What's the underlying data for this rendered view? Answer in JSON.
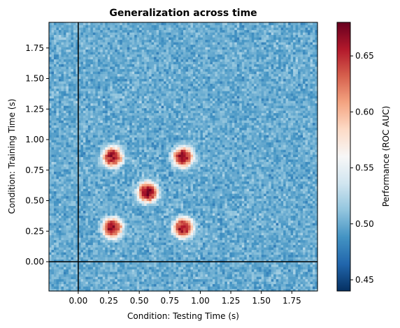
{
  "chart_data": {
    "type": "heatmap",
    "title": "Generalization across time",
    "xlabel": "Condition: Testing Time (s)",
    "ylabel": "Condition: Training Time (s)",
    "colorbar_label": "Performance (ROC AUC)",
    "colormap": "RdBu_r",
    "colormap_stops": [
      "#053061",
      "#2166ac",
      "#4393c3",
      "#92c5de",
      "#d1e5f0",
      "#f7f7f7",
      "#fddbc7",
      "#f4a582",
      "#d6604d",
      "#b2182b",
      "#67001f"
    ],
    "xlim": [
      -0.24,
      1.96
    ],
    "ylim": [
      -0.24,
      1.96
    ],
    "vmin": 0.44,
    "vmax": 0.68,
    "baseline": 0.5,
    "grid_resolution": 0.02,
    "xticks": [
      0.0,
      0.25,
      0.5,
      0.75,
      1.0,
      1.25,
      1.5,
      1.75
    ],
    "xtick_labels": [
      "0.00",
      "0.25",
      "0.50",
      "0.75",
      "1.00",
      "1.25",
      "1.50",
      "1.75"
    ],
    "yticks": [
      0.0,
      0.25,
      0.5,
      0.75,
      1.0,
      1.25,
      1.5,
      1.75
    ],
    "ytick_labels": [
      "0.00",
      "0.25",
      "0.50",
      "0.75",
      "1.00",
      "1.25",
      "1.50",
      "1.75"
    ],
    "colorbar_ticks": [
      0.45,
      0.5,
      0.55,
      0.6,
      0.65
    ],
    "colorbar_tick_labels": [
      "0.45",
      "0.50",
      "0.55",
      "0.60",
      "0.65"
    ],
    "reference_lines": [
      {
        "orientation": "vertical",
        "x": 0.0,
        "color": "#000000"
      },
      {
        "orientation": "horizontal",
        "y": 0.0,
        "color": "#000000"
      }
    ],
    "peaks": [
      {
        "test_time": 0.28,
        "train_time": 0.86,
        "auc": 0.66
      },
      {
        "test_time": 0.86,
        "train_time": 0.86,
        "auc": 0.66
      },
      {
        "test_time": 0.57,
        "train_time": 0.57,
        "auc": 0.67
      },
      {
        "test_time": 0.28,
        "train_time": 0.28,
        "auc": 0.66
      },
      {
        "test_time": 0.86,
        "train_time": 0.28,
        "auc": 0.66
      }
    ],
    "grid": false,
    "legend": "none"
  }
}
